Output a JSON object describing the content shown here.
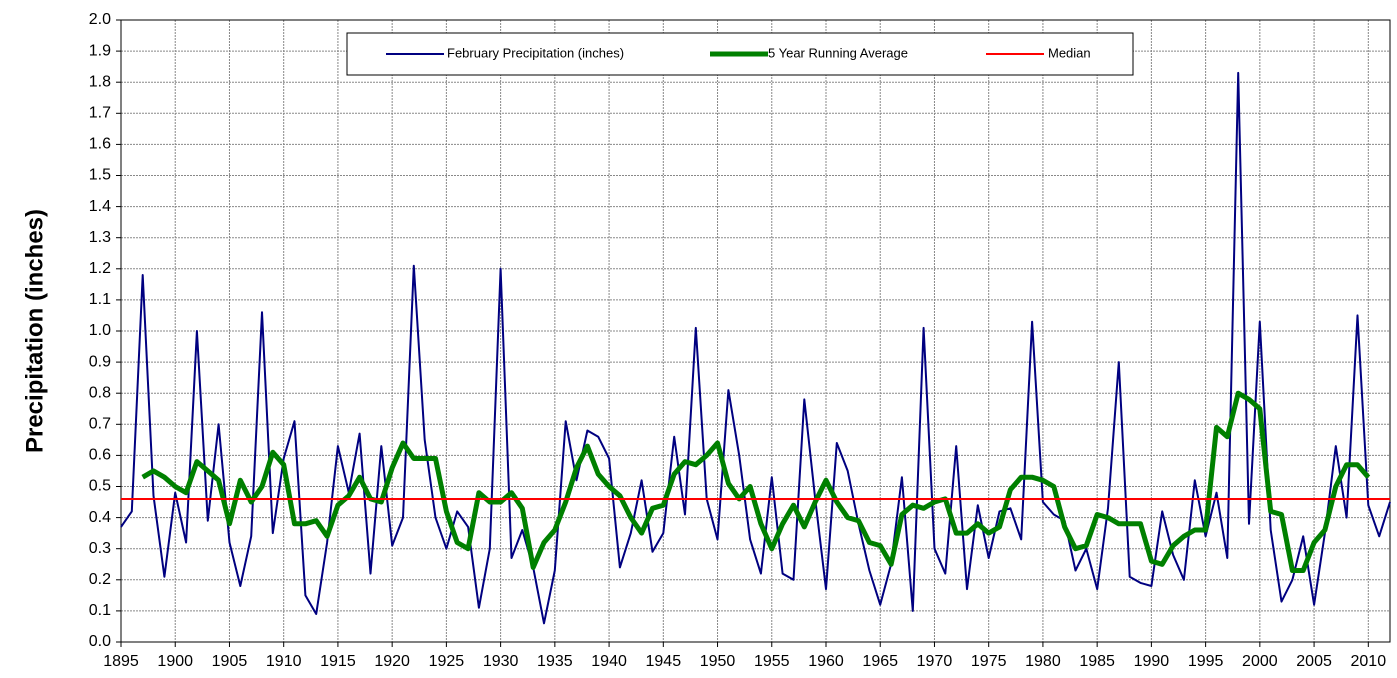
{
  "chart_data": {
    "type": "line",
    "y_label": "Precipitation (inches)",
    "x": [
      1895,
      1896,
      1897,
      1898,
      1899,
      1900,
      1901,
      1902,
      1903,
      1904,
      1905,
      1906,
      1907,
      1908,
      1909,
      1910,
      1911,
      1912,
      1913,
      1914,
      1915,
      1916,
      1917,
      1918,
      1919,
      1920,
      1921,
      1922,
      1923,
      1924,
      1925,
      1926,
      1927,
      1928,
      1929,
      1930,
      1931,
      1932,
      1933,
      1934,
      1935,
      1936,
      1937,
      1938,
      1939,
      1940,
      1941,
      1942,
      1943,
      1944,
      1945,
      1946,
      1947,
      1948,
      1949,
      1950,
      1951,
      1952,
      1953,
      1954,
      1955,
      1956,
      1957,
      1958,
      1959,
      1960,
      1961,
      1962,
      1963,
      1964,
      1965,
      1966,
      1967,
      1968,
      1969,
      1970,
      1971,
      1972,
      1973,
      1974,
      1975,
      1976,
      1977,
      1978,
      1979,
      1980,
      1981,
      1982,
      1983,
      1984,
      1985,
      1986,
      1987,
      1988,
      1989,
      1990,
      1991,
      1992,
      1993,
      1994,
      1995,
      1996,
      1997,
      1998,
      1999,
      2000,
      2001,
      2002,
      2003,
      2004,
      2005,
      2006,
      2007,
      2008,
      2009,
      2010,
      2011,
      2012
    ],
    "series": [
      {
        "name": "February Precipitation (inches)",
        "color": "#000080",
        "width": 2,
        "values": [
          0.37,
          0.42,
          1.18,
          0.47,
          0.21,
          0.48,
          0.32,
          1.0,
          0.39,
          0.7,
          0.32,
          0.18,
          0.34,
          1.06,
          0.35,
          0.59,
          0.71,
          0.15,
          0.09,
          0.32,
          0.63,
          0.48,
          0.67,
          0.22,
          0.63,
          0.31,
          0.4,
          1.21,
          0.65,
          0.4,
          0.3,
          0.42,
          0.37,
          0.11,
          0.3,
          1.2,
          0.27,
          0.36,
          0.24,
          0.06,
          0.23,
          0.71,
          0.52,
          0.68,
          0.66,
          0.59,
          0.24,
          0.35,
          0.52,
          0.29,
          0.35,
          0.66,
          0.41,
          1.01,
          0.46,
          0.33,
          0.81,
          0.6,
          0.33,
          0.22,
          0.53,
          0.22,
          0.2,
          0.78,
          0.46,
          0.17,
          0.64,
          0.55,
          0.38,
          0.23,
          0.12,
          0.25,
          0.53,
          0.1,
          1.01,
          0.3,
          0.22,
          0.63,
          0.17,
          0.44,
          0.27,
          0.42,
          0.43,
          0.33,
          1.03,
          0.45,
          0.41,
          0.39,
          0.23,
          0.3,
          0.17,
          0.43,
          0.9,
          0.21,
          0.19,
          0.18,
          0.42,
          0.28,
          0.2,
          0.52,
          0.34,
          0.48,
          0.27,
          1.83,
          0.38,
          1.03,
          0.36,
          0.13,
          0.2,
          0.34,
          0.12,
          0.35,
          0.63,
          0.4,
          1.05,
          0.44,
          0.34,
          0.45
        ]
      },
      {
        "name": "5 Year Running Average",
        "color": "#008000",
        "width": 5,
        "values": [
          null,
          null,
          0.53,
          0.55,
          0.53,
          0.5,
          0.48,
          0.58,
          0.55,
          0.52,
          0.38,
          0.52,
          0.45,
          0.5,
          0.61,
          0.57,
          0.38,
          0.38,
          0.39,
          0.34,
          0.44,
          0.47,
          0.53,
          0.46,
          0.45,
          0.56,
          0.64,
          0.59,
          0.59,
          0.59,
          0.42,
          0.32,
          0.3,
          0.48,
          0.45,
          0.45,
          0.48,
          0.43,
          0.24,
          0.32,
          0.36,
          0.45,
          0.56,
          0.63,
          0.54,
          0.5,
          0.47,
          0.4,
          0.35,
          0.43,
          0.44,
          0.54,
          0.58,
          0.57,
          0.6,
          0.64,
          0.51,
          0.46,
          0.5,
          0.38,
          0.3,
          0.38,
          0.44,
          0.37,
          0.45,
          0.52,
          0.45,
          0.4,
          0.39,
          0.32,
          0.31,
          0.25,
          0.41,
          0.44,
          0.43,
          0.45,
          0.46,
          0.35,
          0.35,
          0.38,
          0.35,
          0.37,
          0.49,
          0.53,
          0.53,
          0.52,
          0.5,
          0.37,
          0.3,
          0.31,
          0.41,
          0.4,
          0.38,
          0.38,
          0.38,
          0.26,
          0.25,
          0.31,
          0.34,
          0.36,
          0.36,
          0.69,
          0.66,
          0.8,
          0.78,
          0.75,
          0.42,
          0.41,
          0.23,
          0.23,
          0.32,
          0.36,
          0.5,
          0.57,
          0.57,
          0.53,
          null,
          null
        ]
      }
    ],
    "median": {
      "name": "Median",
      "color": "#ff0000",
      "value": 0.46
    },
    "xlim": [
      1895,
      2012
    ],
    "xticks": [
      1895,
      1900,
      1905,
      1910,
      1915,
      1920,
      1925,
      1930,
      1935,
      1940,
      1945,
      1950,
      1955,
      1960,
      1965,
      1970,
      1975,
      1980,
      1985,
      1990,
      1995,
      2000,
      2005,
      2010
    ],
    "ylim": [
      0,
      2
    ],
    "yticks": [
      {
        "value": 0,
        "label": "0.0"
      },
      0.1,
      0.2,
      0.3,
      0.4,
      0.5,
      0.6,
      0.7,
      0.8,
      0.9,
      {
        "value": 1,
        "label": "1.0"
      },
      1.1,
      1.2,
      1.3,
      1.4,
      1.5,
      1.6,
      1.7,
      1.8,
      1.9,
      {
        "value": 2,
        "label": "2.0"
      }
    ],
    "grid": true
  }
}
